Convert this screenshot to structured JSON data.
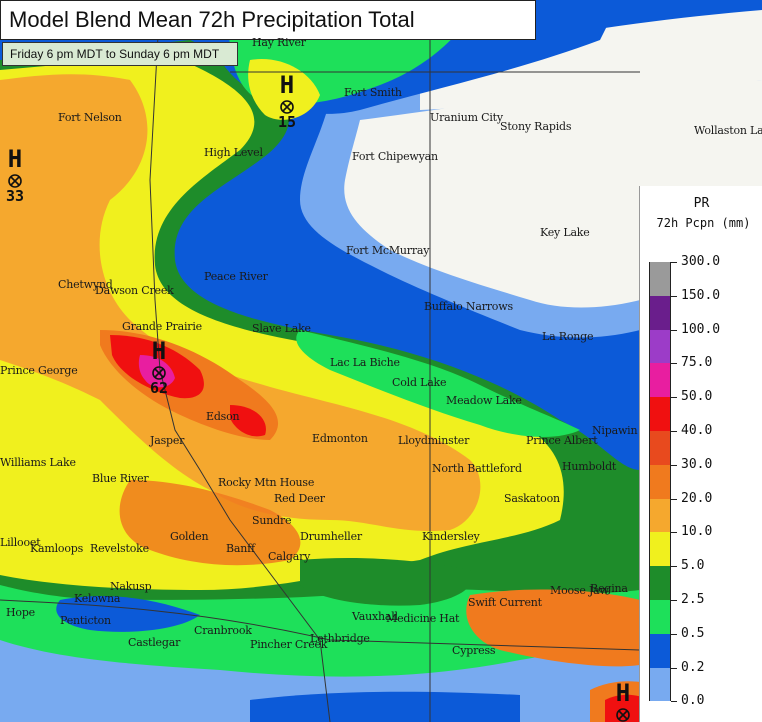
{
  "title": "Model Blend Mean 72h Precipitation Total",
  "subtitle": "Friday 6 pm MDT to Sunday 6 pm MDT",
  "legend": {
    "heading1": "PR",
    "heading2": "72h Pcpn (mm)",
    "levels": [
      "300.0",
      "150.0",
      "100.0",
      "75.0",
      "50.0",
      "40.0",
      "30.0",
      "20.0",
      "10.0",
      "5.0",
      "2.5",
      "0.5",
      "0.2",
      "0.0"
    ],
    "colors": [
      "#9a9a9a",
      "#6a1e8c",
      "#9c3cc8",
      "#e81ea0",
      "#f01010",
      "#e84a1e",
      "#f07a1e",
      "#f5a82e",
      "#f0f01e",
      "#1e8c2a",
      "#1ee05a",
      "#0c5ad8",
      "#78aaf0",
      "#f5f5f0"
    ]
  },
  "cities": [
    {
      "name": "Hay River"
    },
    {
      "name": "Fort Smith"
    },
    {
      "name": "Fort Nelson"
    },
    {
      "name": "Uranium City"
    },
    {
      "name": "Stony Rapids"
    },
    {
      "name": "Wollaston Lake"
    },
    {
      "name": "High Level"
    },
    {
      "name": "Fort Chipewyan"
    },
    {
      "name": "Fort McMurray"
    },
    {
      "name": "Key Lake"
    },
    {
      "name": "Peace River"
    },
    {
      "name": "Chetwynd"
    },
    {
      "name": "Dawson Creek"
    },
    {
      "name": "Buffalo Narrows"
    },
    {
      "name": "Grande Prairie"
    },
    {
      "name": "Slave Lake"
    },
    {
      "name": "La Ronge"
    },
    {
      "name": "Prince George"
    },
    {
      "name": "Lac La Biche"
    },
    {
      "name": "Cold Lake"
    },
    {
      "name": "Meadow Lake"
    },
    {
      "name": "Edson"
    },
    {
      "name": "Edmonton"
    },
    {
      "name": "Lloydminster"
    },
    {
      "name": "Prince Albert"
    },
    {
      "name": "Nipawin"
    },
    {
      "name": "Jasper"
    },
    {
      "name": "Williams Lake"
    },
    {
      "name": "North Battleford"
    },
    {
      "name": "Humboldt"
    },
    {
      "name": "Blue River"
    },
    {
      "name": "Rocky Mtn House"
    },
    {
      "name": "Red Deer"
    },
    {
      "name": "Saskatoon"
    },
    {
      "name": "Sundre"
    },
    {
      "name": "Drumheller"
    },
    {
      "name": "Kindersley"
    },
    {
      "name": "Golden"
    },
    {
      "name": "Banff"
    },
    {
      "name": "Calgary"
    },
    {
      "name": "Revelstoke"
    },
    {
      "name": "Kamloops"
    },
    {
      "name": "Nakusp"
    },
    {
      "name": "Kelowna"
    },
    {
      "name": "Vauxhall"
    },
    {
      "name": "Medicine Hat"
    },
    {
      "name": "Swift Current"
    },
    {
      "name": "Moose Jaw"
    },
    {
      "name": "Regina"
    },
    {
      "name": "Penticton"
    },
    {
      "name": "Cranbrook"
    },
    {
      "name": "Castlegar"
    },
    {
      "name": "Lethbridge"
    },
    {
      "name": "Pincher Creek"
    },
    {
      "name": "Cypress"
    },
    {
      "name": "Hope"
    },
    {
      "name": "Lillooet"
    }
  ],
  "highs": [
    {
      "letter": "H",
      "value": "15"
    },
    {
      "letter": "H",
      "value": "33"
    },
    {
      "letter": "H",
      "value": "62"
    },
    {
      "letter": "H",
      "value": ""
    }
  ]
}
